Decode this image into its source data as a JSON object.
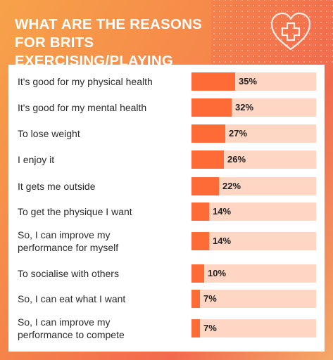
{
  "header": {
    "title_line1": "WHAT ARE THE REASONS FOR BRITS",
    "title_line2": "EXERCISING/PLAYING SPORT?",
    "icon": "heart-plus-icon"
  },
  "colors": {
    "bar": "#ff6b36",
    "track": "#fed6c3",
    "background": "#f5864a"
  },
  "chart_data": {
    "type": "bar",
    "orientation": "horizontal",
    "xlim": [
      0,
      100
    ],
    "grid": false,
    "categories": [
      "It's good for my physical health",
      "It's good for my mental health",
      "To lose weight",
      "I enjoy it",
      "It gets me outside",
      "To get the physique I want",
      "So, I can improve my performance for myself",
      "To socialise with others",
      "So, I can eat what I want",
      "So, I can improve my performance to compete"
    ],
    "label_lines": [
      [
        "It's good for my physical health"
      ],
      [
        "It's good for my mental health"
      ],
      [
        "To lose weight"
      ],
      [
        "I enjoy it"
      ],
      [
        "It gets me outside"
      ],
      [
        "To get the physique I want"
      ],
      [
        "So, I can improve my",
        "performance for myself"
      ],
      [
        "To socialise with others"
      ],
      [
        "So, I can eat what I want"
      ],
      [
        "So, I can improve my",
        "performance to compete"
      ]
    ],
    "values": [
      35,
      32,
      27,
      26,
      22,
      14,
      14,
      10,
      7,
      7
    ],
    "value_labels": [
      "35%",
      "32%",
      "27%",
      "26%",
      "22%",
      "14%",
      "14%",
      "10%",
      "7%",
      "7%"
    ]
  }
}
